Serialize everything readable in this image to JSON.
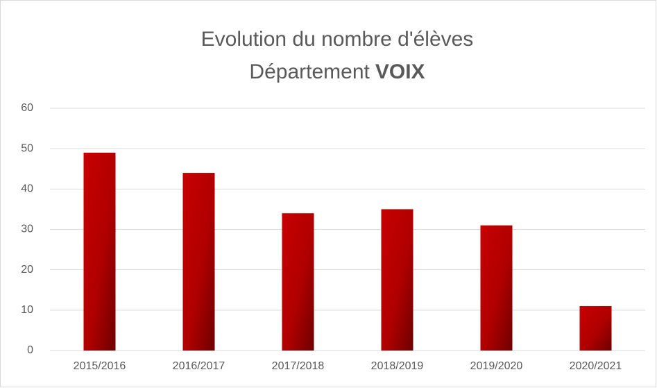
{
  "chart_data": {
    "type": "bar",
    "title": "Evolution du nombre d'élèves",
    "subtitle": "Département",
    "subtitle_bold": "VOIX",
    "categories": [
      "2015/2016",
      "2016/2017",
      "2017/2018",
      "2018/2019",
      "2019/2020",
      "2020/2021"
    ],
    "values": [
      49,
      44,
      34,
      35,
      31,
      11
    ],
    "color": "#c00000",
    "ylim": [
      0,
      60
    ],
    "yticks": [
      0,
      10,
      20,
      30,
      40,
      50,
      60
    ],
    "grid": true
  }
}
